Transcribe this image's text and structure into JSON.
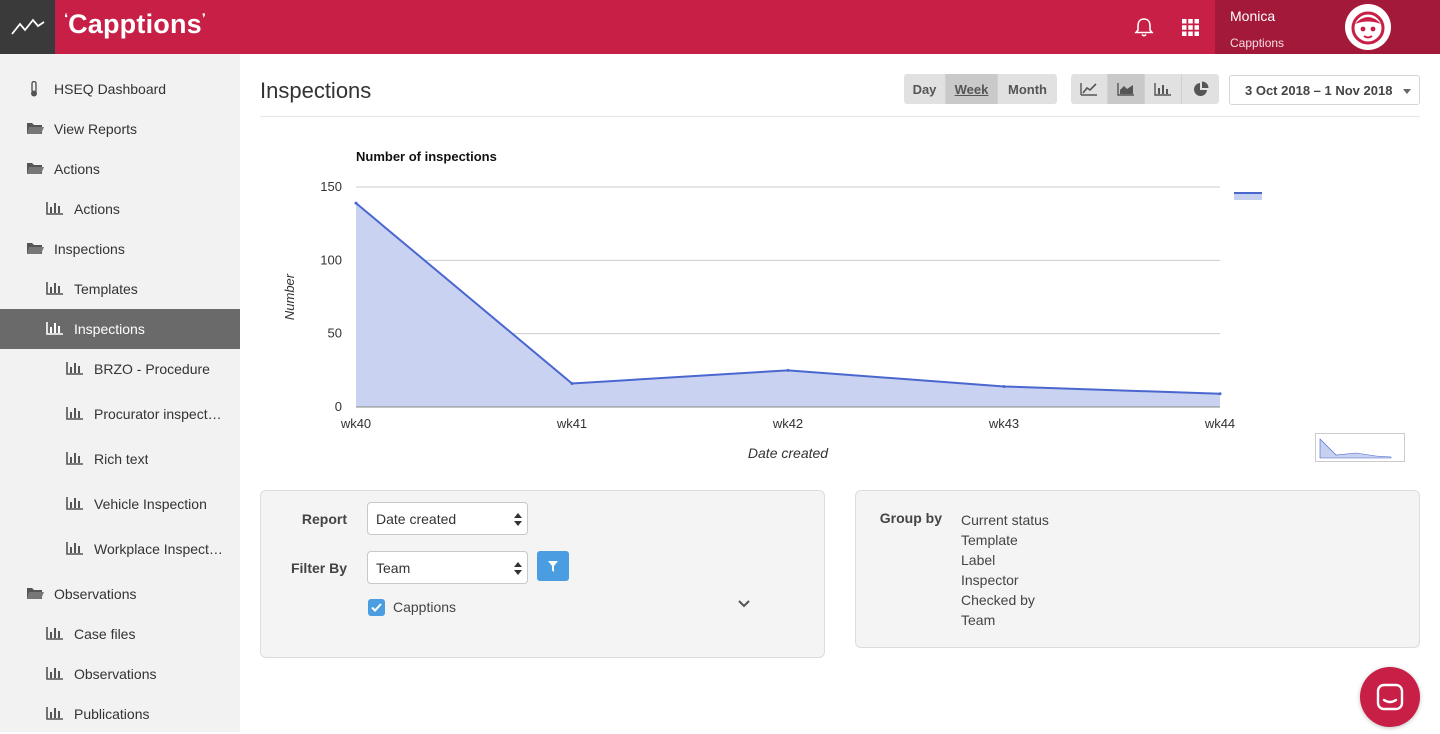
{
  "app": {
    "brand": "Capptions"
  },
  "header": {
    "user_name": "Monica",
    "user_org": "Capptions"
  },
  "sidebar": {
    "items": [
      {
        "label": "HSEQ Dashboard",
        "icon": "thermometer-icon"
      },
      {
        "label": "View Reports",
        "icon": "folder-icon"
      },
      {
        "label": "Actions",
        "icon": "folder-icon"
      },
      {
        "label": "Actions",
        "icon": "bar-chart-icon"
      },
      {
        "label": "Inspections",
        "icon": "folder-icon"
      },
      {
        "label": "Templates",
        "icon": "bar-chart-icon"
      },
      {
        "label": "Inspections",
        "icon": "bar-chart-icon",
        "active": true
      },
      {
        "label": "BRZO - Procedure",
        "icon": "bar-chart-icon"
      },
      {
        "label": "Procurator inspection",
        "icon": "bar-chart-icon"
      },
      {
        "label": "Rich text",
        "icon": "bar-chart-icon"
      },
      {
        "label": "Vehicle Inspection",
        "icon": "bar-chart-icon"
      },
      {
        "label": "Workplace Inspection",
        "icon": "bar-chart-icon"
      },
      {
        "label": "Observations",
        "icon": "folder-icon"
      },
      {
        "label": "Case files",
        "icon": "bar-chart-icon"
      },
      {
        "label": "Observations",
        "icon": "bar-chart-icon"
      },
      {
        "label": "Publications",
        "icon": "bar-chart-icon"
      }
    ]
  },
  "main": {
    "title": "Inspections",
    "period_buttons": [
      "Day",
      "Week",
      "Month"
    ],
    "selected_period": "Week",
    "chart_type_buttons": [
      "line-chart-icon",
      "area-chart-icon",
      "bar-chart-icon",
      "pie-chart-icon"
    ],
    "selected_chart_type": "area-chart-icon",
    "date_range": "3 Oct 2018 – 1 Nov 2018"
  },
  "chart_data": {
    "type": "area",
    "title": "Number of inspections",
    "xlabel": "Date created",
    "ylabel": "Number",
    "categories": [
      "wk40",
      "wk41",
      "wk42",
      "wk43",
      "wk44"
    ],
    "values": [
      139,
      16,
      25,
      14,
      9
    ],
    "ylim": [
      0,
      150
    ],
    "yticks": [
      0,
      50,
      100,
      150
    ],
    "grid": true,
    "colors": {
      "line": "#4a67d0",
      "fill": "#c6d0ef"
    }
  },
  "report_panel": {
    "report_label": "Report",
    "report_value": "Date created",
    "filter_label": "Filter By",
    "filter_value": "Team",
    "checkbox_label": "Capptions",
    "checkbox_checked": true
  },
  "group_panel": {
    "label": "Group by",
    "options": [
      "Current status",
      "Template",
      "Label",
      "Inspector",
      "Checked by",
      "Team"
    ]
  },
  "colors": {
    "brand": "#c71f45",
    "brand_dark": "#a3193a",
    "accent": "#4a9de0"
  }
}
